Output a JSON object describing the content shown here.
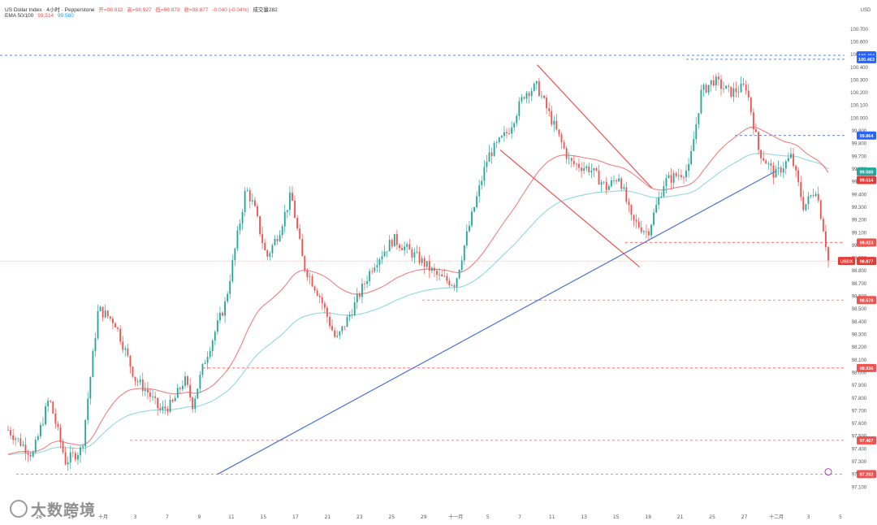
{
  "header": {
    "symbol": "US Dollar Index · 4小时 · Pepperstone",
    "open": "开=98.912",
    "high": "高=98.927",
    "low": "低=98.873",
    "close": "收=98.877",
    "change": "-0.040 (-0.04%)",
    "volume": "成交量282",
    "ema_label": "EMA 50/100",
    "ema50": "99.514",
    "ema100": "99.580"
  },
  "watermark": "大数跨境",
  "colors": {
    "up": "#26a69a",
    "down": "#ef5350",
    "ema50": "#f08080",
    "ema100": "#8fd9e0",
    "trendline": "#4a73d9",
    "channel": "#ef5350",
    "res_level": "#2962ff",
    "sup_level": "#ef5350"
  },
  "chart_data": {
    "type": "candlestick",
    "title": "US Dollar Index",
    "y_unit": "USD",
    "ylim": [
      97.0,
      100.75
    ],
    "y_ticks": [
      "100.700",
      "100.600",
      "100.500",
      "100.400",
      "100.300",
      "100.200",
      "100.100",
      "100.000",
      "99.900",
      "99.800",
      "99.700",
      "99.600",
      "99.500",
      "99.400",
      "99.300",
      "99.200",
      "99.100",
      "99.000",
      "98.900",
      "98.800",
      "98.700",
      "98.600",
      "98.500",
      "98.400",
      "98.300",
      "98.200",
      "98.100",
      "98.000",
      "97.900",
      "97.800",
      "97.700",
      "97.600",
      "97.500",
      "97.400",
      "97.300",
      "97.200",
      "97.100"
    ],
    "x_ticks": [
      "26",
      "29",
      "十月",
      "3",
      "7",
      "9",
      "11",
      "15",
      "17",
      "21",
      "23",
      "25",
      "29",
      "十一月",
      "5",
      "7",
      "11",
      "13",
      "15",
      "19",
      "21",
      "25",
      "27",
      "十二月",
      "3",
      "5"
    ],
    "price_labels": [
      {
        "text": "100.494",
        "value": 100.494,
        "kind": "resistance"
      },
      {
        "text": "100.463",
        "value": 100.463,
        "kind": "resistance"
      },
      {
        "text": "99.864",
        "value": 99.864,
        "kind": "resistance"
      },
      {
        "text": "99.580",
        "value": 99.58,
        "kind": "ema100"
      },
      {
        "text": "99.514",
        "value": 99.514,
        "kind": "ema50"
      },
      {
        "text": "99.023",
        "value": 99.023,
        "kind": "support"
      },
      {
        "text": "98.877",
        "value": 98.877,
        "kind": "current"
      },
      {
        "text": "98.570",
        "value": 98.57,
        "kind": "support"
      },
      {
        "text": "98.036",
        "value": 98.036,
        "kind": "support"
      },
      {
        "text": "97.467",
        "value": 97.467,
        "kind": "support"
      },
      {
        "text": "97.202",
        "value": 97.202,
        "kind": "support"
      }
    ],
    "current_tag": "USDX",
    "anchors": [
      {
        "t": 0.0,
        "v": 97.55
      },
      {
        "t": 0.03,
        "v": 97.35
      },
      {
        "t": 0.05,
        "v": 97.8
      },
      {
        "t": 0.07,
        "v": 97.3
      },
      {
        "t": 0.09,
        "v": 97.4
      },
      {
        "t": 0.11,
        "v": 98.5
      },
      {
        "t": 0.13,
        "v": 98.4
      },
      {
        "t": 0.155,
        "v": 97.95
      },
      {
        "t": 0.17,
        "v": 97.85
      },
      {
        "t": 0.185,
        "v": 97.7
      },
      {
        "t": 0.2,
        "v": 97.75
      },
      {
        "t": 0.215,
        "v": 97.95
      },
      {
        "t": 0.225,
        "v": 97.75
      },
      {
        "t": 0.24,
        "v": 98.1
      },
      {
        "t": 0.265,
        "v": 98.55
      },
      {
        "t": 0.29,
        "v": 99.45
      },
      {
        "t": 0.3,
        "v": 99.3
      },
      {
        "t": 0.315,
        "v": 98.9
      },
      {
        "t": 0.33,
        "v": 99.1
      },
      {
        "t": 0.345,
        "v": 99.4
      },
      {
        "t": 0.36,
        "v": 98.85
      },
      {
        "t": 0.38,
        "v": 98.6
      },
      {
        "t": 0.4,
        "v": 98.25
      },
      {
        "t": 0.42,
        "v": 98.5
      },
      {
        "t": 0.445,
        "v": 98.85
      },
      {
        "t": 0.47,
        "v": 99.05
      },
      {
        "t": 0.5,
        "v": 98.9
      },
      {
        "t": 0.525,
        "v": 98.75
      },
      {
        "t": 0.545,
        "v": 98.7
      },
      {
        "t": 0.56,
        "v": 99.1
      },
      {
        "t": 0.585,
        "v": 99.7
      },
      {
        "t": 0.61,
        "v": 99.9
      },
      {
        "t": 0.63,
        "v": 100.2
      },
      {
        "t": 0.645,
        "v": 100.25
      },
      {
        "t": 0.665,
        "v": 99.95
      },
      {
        "t": 0.685,
        "v": 99.65
      },
      {
        "t": 0.71,
        "v": 99.6
      },
      {
        "t": 0.73,
        "v": 99.45
      },
      {
        "t": 0.745,
        "v": 99.55
      },
      {
        "t": 0.76,
        "v": 99.2
      },
      {
        "t": 0.78,
        "v": 99.1
      },
      {
        "t": 0.8,
        "v": 99.5
      },
      {
        "t": 0.83,
        "v": 99.6
      },
      {
        "t": 0.845,
        "v": 100.2
      },
      {
        "t": 0.86,
        "v": 100.3
      },
      {
        "t": 0.88,
        "v": 100.2
      },
      {
        "t": 0.9,
        "v": 100.25
      },
      {
        "t": 0.915,
        "v": 99.75
      },
      {
        "t": 0.935,
        "v": 99.55
      },
      {
        "t": 0.955,
        "v": 99.7
      },
      {
        "t": 0.97,
        "v": 99.3
      },
      {
        "t": 0.985,
        "v": 99.45
      },
      {
        "t": 0.995,
        "v": 99.1
      },
      {
        "t": 1.0,
        "v": 98.88
      }
    ],
    "trendlines": [
      {
        "name": "uptrend",
        "from": {
          "t": 0.255,
          "v": 97.2
        },
        "to": {
          "t": 0.935,
          "v": 99.58
        }
      },
      {
        "name": "channel-upper",
        "from": {
          "t": 0.645,
          "v": 100.42
        },
        "to": {
          "t": 0.785,
          "v": 99.45
        }
      },
      {
        "name": "channel-lower",
        "from": {
          "t": 0.6,
          "v": 99.75
        },
        "to": {
          "t": 0.77,
          "v": 98.83
        }
      }
    ]
  }
}
